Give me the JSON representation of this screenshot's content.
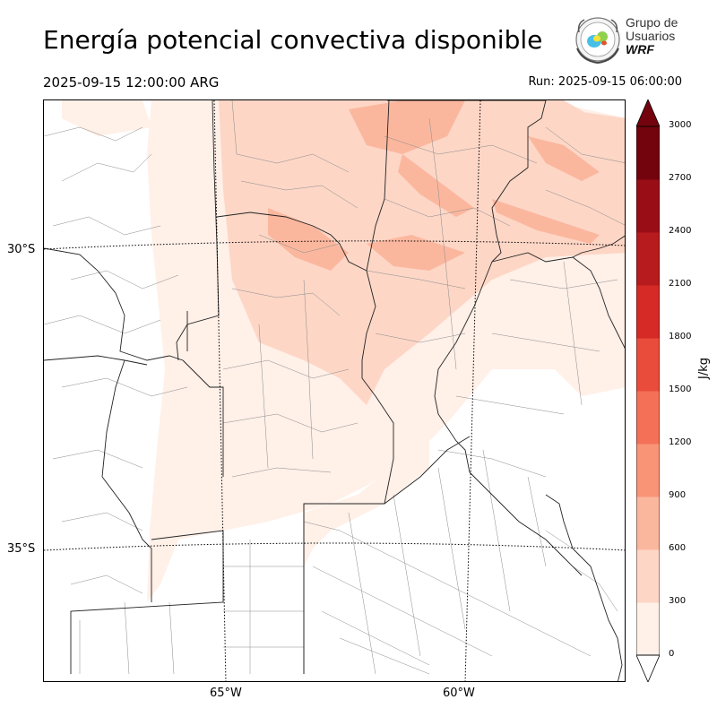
{
  "header": {
    "title": "Energía potencial convectiva disponible",
    "valid_time": "2025-09-15 12:00:00 ARG",
    "run_time": "Run: 2025-09-15 06:00:00"
  },
  "logo": {
    "line1": "Grupo de",
    "line2": "Usuarios",
    "line3": "WRF"
  },
  "map": {
    "lat_labels": [
      "30°S",
      "35°S"
    ],
    "lon_labels": [
      "65°W",
      "60°W"
    ]
  },
  "colorbar": {
    "unit": "J/kg",
    "ticks": [
      "0",
      "300",
      "600",
      "900",
      "1200",
      "1500",
      "1800",
      "2100",
      "2400",
      "2700",
      "3000"
    ],
    "colors": [
      "#fff0e8",
      "#fdd6c6",
      "#fbb79e",
      "#f99477",
      "#f47157",
      "#e94c3a",
      "#d52a25",
      "#b81b1d",
      "#990e16",
      "#73040d"
    ],
    "extend_low_color": "#ffffff",
    "extend_high_color": "#73040d"
  }
}
